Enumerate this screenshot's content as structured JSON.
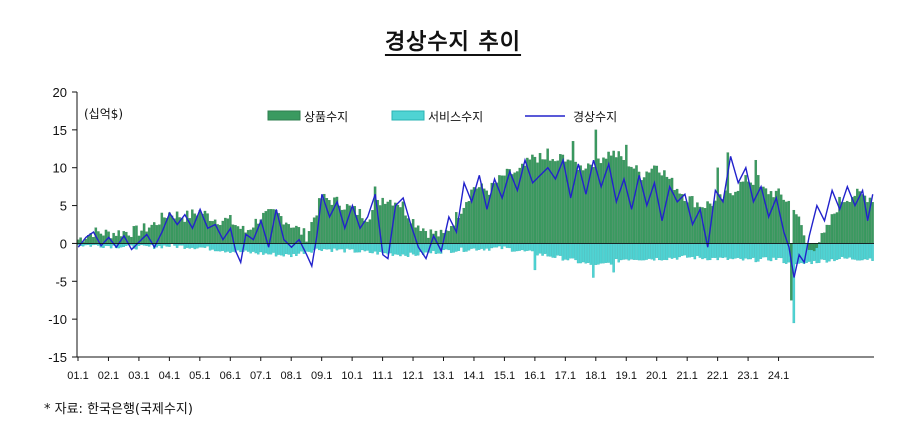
{
  "title": "경상수지 추이",
  "footnote": "* 자료: 한국은행(국제수지)",
  "colors": {
    "goods": "#3a9a60",
    "goods_edge": "#2f7f4f",
    "services": "#4fd3d3",
    "services_edge": "#2ab3b3",
    "current": "#2222cc",
    "axis": "#111111"
  },
  "chart_data": {
    "type": "bar",
    "unit_label": "(십억$)",
    "ylim": [
      -15,
      20
    ],
    "yticks": [
      20,
      15,
      10,
      5,
      0,
      -5,
      -10,
      -15
    ],
    "x_tick_labels": [
      "01.1",
      "02.1",
      "03.1",
      "04.1",
      "05.1",
      "06.1",
      "07.1",
      "08.1",
      "09.1",
      "10.1",
      "11.1",
      "12.1",
      "13.1",
      "14.1",
      "15.1",
      "16.1",
      "17.1",
      "18.1",
      "19.1",
      "20.1",
      "21.1",
      "22.1",
      "23.1",
      "24.1"
    ],
    "legend": {
      "placement": "top-center"
    },
    "series": [
      {
        "name": "상품수지",
        "kind": "bar",
        "anchors": [
          [
            0,
            0.5
          ],
          [
            6,
            1.5
          ],
          [
            12,
            1.3
          ],
          [
            18,
            1.5
          ],
          [
            24,
            1.6
          ],
          [
            30,
            2.5
          ],
          [
            36,
            4.0
          ],
          [
            42,
            3.5
          ],
          [
            48,
            4.2
          ],
          [
            54,
            3.2
          ],
          [
            60,
            3.0
          ],
          [
            66,
            1.5
          ],
          [
            72,
            3.5
          ],
          [
            78,
            4.0
          ],
          [
            84,
            2.5
          ],
          [
            90,
            1.0
          ],
          [
            96,
            6.0
          ],
          [
            102,
            5.5
          ],
          [
            108,
            4.5
          ],
          [
            114,
            3.5
          ],
          [
            120,
            6.0
          ],
          [
            126,
            5.5
          ],
          [
            132,
            3.0
          ],
          [
            138,
            1.5
          ],
          [
            144,
            1.0
          ],
          [
            150,
            4.0
          ],
          [
            156,
            7.5
          ],
          [
            162,
            7.0
          ],
          [
            168,
            9.0
          ],
          [
            174,
            9.5
          ],
          [
            180,
            11.5
          ],
          [
            186,
            10.5
          ],
          [
            192,
            11.5
          ],
          [
            198,
            10.0
          ],
          [
            204,
            11.0
          ],
          [
            210,
            12.0
          ],
          [
            216,
            11.0
          ],
          [
            222,
            9.0
          ],
          [
            228,
            10.5
          ],
          [
            234,
            8.0
          ],
          [
            240,
            6.0
          ],
          [
            246,
            5.0
          ],
          [
            252,
            5.5
          ],
          [
            258,
            7.0
          ],
          [
            264,
            8.5
          ],
          [
            270,
            7.0
          ],
          [
            276,
            6.5
          ],
          [
            282,
            5.0
          ],
          [
            288,
            -1.0
          ],
          [
            294,
            1.0
          ],
          [
            300,
            5.5
          ],
          [
            306,
            6.5
          ],
          [
            313,
            6.0
          ]
        ],
        "spikes": [
          [
            117,
            7.5
          ],
          [
            128,
            5.5
          ],
          [
            173,
            9.5
          ],
          [
            185,
            12.5
          ],
          [
            195,
            13.5
          ],
          [
            204,
            15
          ],
          [
            216,
            13
          ],
          [
            252,
            10
          ],
          [
            256,
            12
          ],
          [
            267,
            11
          ],
          [
            268,
            9
          ],
          [
            281,
            -7.5
          ]
        ]
      },
      {
        "name": "서비스수지",
        "kind": "bar",
        "anchors": [
          [
            0,
            -0.2
          ],
          [
            12,
            -0.3
          ],
          [
            24,
            -0.5
          ],
          [
            36,
            -0.3
          ],
          [
            48,
            -0.5
          ],
          [
            60,
            -1.0
          ],
          [
            72,
            -1.3
          ],
          [
            84,
            -1.6
          ],
          [
            90,
            -1.0
          ],
          [
            96,
            -0.7
          ],
          [
            108,
            -1.0
          ],
          [
            120,
            -1.3
          ],
          [
            132,
            -1.5
          ],
          [
            144,
            -1.0
          ],
          [
            156,
            -0.7
          ],
          [
            168,
            -0.6
          ],
          [
            180,
            -1.3
          ],
          [
            192,
            -2.0
          ],
          [
            204,
            -3.0
          ],
          [
            210,
            -2.5
          ],
          [
            216,
            -2.0
          ],
          [
            222,
            -2.0
          ],
          [
            228,
            -2.0
          ],
          [
            240,
            -1.8
          ],
          [
            252,
            -2.0
          ],
          [
            264,
            -2.2
          ],
          [
            276,
            -2.0
          ],
          [
            282,
            -3.0
          ],
          [
            288,
            -2.5
          ],
          [
            300,
            -2.0
          ],
          [
            313,
            -2.0
          ]
        ],
        "spikes": [
          [
            180,
            -3.5
          ],
          [
            203,
            -4.5
          ],
          [
            211,
            -3.8
          ],
          [
            282,
            -10.5
          ]
        ]
      },
      {
        "name": "경상수지",
        "kind": "line",
        "anchors": [
          [
            0,
            -0.5
          ],
          [
            3,
            0.8
          ],
          [
            6,
            1.5
          ],
          [
            9,
            -0.3
          ],
          [
            12,
            0.8
          ],
          [
            15,
            -0.5
          ],
          [
            18,
            1.0
          ],
          [
            21,
            -0.8
          ],
          [
            24,
            0.2
          ],
          [
            27,
            1.2
          ],
          [
            30,
            -0.5
          ],
          [
            33,
            1.5
          ],
          [
            36,
            4.0
          ],
          [
            39,
            2.5
          ],
          [
            42,
            3.8
          ],
          [
            45,
            2.0
          ],
          [
            48,
            4.5
          ],
          [
            51,
            2.0
          ],
          [
            54,
            2.5
          ],
          [
            57,
            0.5
          ],
          [
            60,
            2.0
          ],
          [
            62,
            -1.0
          ],
          [
            64,
            -2.5
          ],
          [
            66,
            1.2
          ],
          [
            69,
            0.5
          ],
          [
            72,
            3.0
          ],
          [
            75,
            -0.5
          ],
          [
            78,
            4.5
          ],
          [
            81,
            0.5
          ],
          [
            84,
            -0.5
          ],
          [
            87,
            0.5
          ],
          [
            90,
            -1.5
          ],
          [
            92,
            -3.0
          ],
          [
            94,
            1.0
          ],
          [
            96,
            6.5
          ],
          [
            99,
            3.5
          ],
          [
            102,
            5.5
          ],
          [
            105,
            2.0
          ],
          [
            108,
            5.0
          ],
          [
            111,
            2.0
          ],
          [
            114,
            3.5
          ],
          [
            117,
            6.5
          ],
          [
            120,
            -1.5
          ],
          [
            122,
            -2.0
          ],
          [
            125,
            5.0
          ],
          [
            128,
            6.0
          ],
          [
            131,
            2.5
          ],
          [
            134,
            -0.5
          ],
          [
            137,
            -2.0
          ],
          [
            140,
            1.0
          ],
          [
            143,
            -1.0
          ],
          [
            146,
            3.5
          ],
          [
            149,
            1.5
          ],
          [
            152,
            8.0
          ],
          [
            155,
            5.5
          ],
          [
            158,
            9.0
          ],
          [
            161,
            4.5
          ],
          [
            164,
            8.5
          ],
          [
            167,
            6.0
          ],
          [
            170,
            9.5
          ],
          [
            173,
            7.0
          ],
          [
            176,
            11.0
          ],
          [
            179,
            8.0
          ],
          [
            182,
            9.0
          ],
          [
            185,
            10.0
          ],
          [
            188,
            8.5
          ],
          [
            191,
            11.0
          ],
          [
            194,
            6.0
          ],
          [
            197,
            10.5
          ],
          [
            200,
            6.5
          ],
          [
            203,
            11.0
          ],
          [
            206,
            7.5
          ],
          [
            209,
            10.5
          ],
          [
            212,
            5.5
          ],
          [
            215,
            8.5
          ],
          [
            218,
            4.5
          ],
          [
            221,
            9.0
          ],
          [
            224,
            5.0
          ],
          [
            227,
            8.0
          ],
          [
            230,
            3.0
          ],
          [
            233,
            7.5
          ],
          [
            236,
            5.5
          ],
          [
            239,
            6.5
          ],
          [
            242,
            2.5
          ],
          [
            245,
            4.5
          ],
          [
            248,
            -0.5
          ],
          [
            251,
            7.0
          ],
          [
            254,
            5.5
          ],
          [
            257,
            11.5
          ],
          [
            260,
            8.0
          ],
          [
            263,
            10.0
          ],
          [
            266,
            5.5
          ],
          [
            269,
            7.5
          ],
          [
            272,
            3.5
          ],
          [
            275,
            6.0
          ],
          [
            278,
            1.5
          ],
          [
            280,
            -0.5
          ],
          [
            282,
            -4.5
          ],
          [
            284,
            -1.5
          ],
          [
            286,
            -2.5
          ],
          [
            288,
            1.0
          ],
          [
            291,
            5.0
          ],
          [
            294,
            3.0
          ],
          [
            297,
            7.0
          ],
          [
            300,
            4.5
          ],
          [
            303,
            7.5
          ],
          [
            306,
            5.0
          ],
          [
            309,
            7.0
          ],
          [
            311,
            3.0
          ],
          [
            313,
            6.5
          ]
        ],
        "spikes": []
      }
    ]
  }
}
